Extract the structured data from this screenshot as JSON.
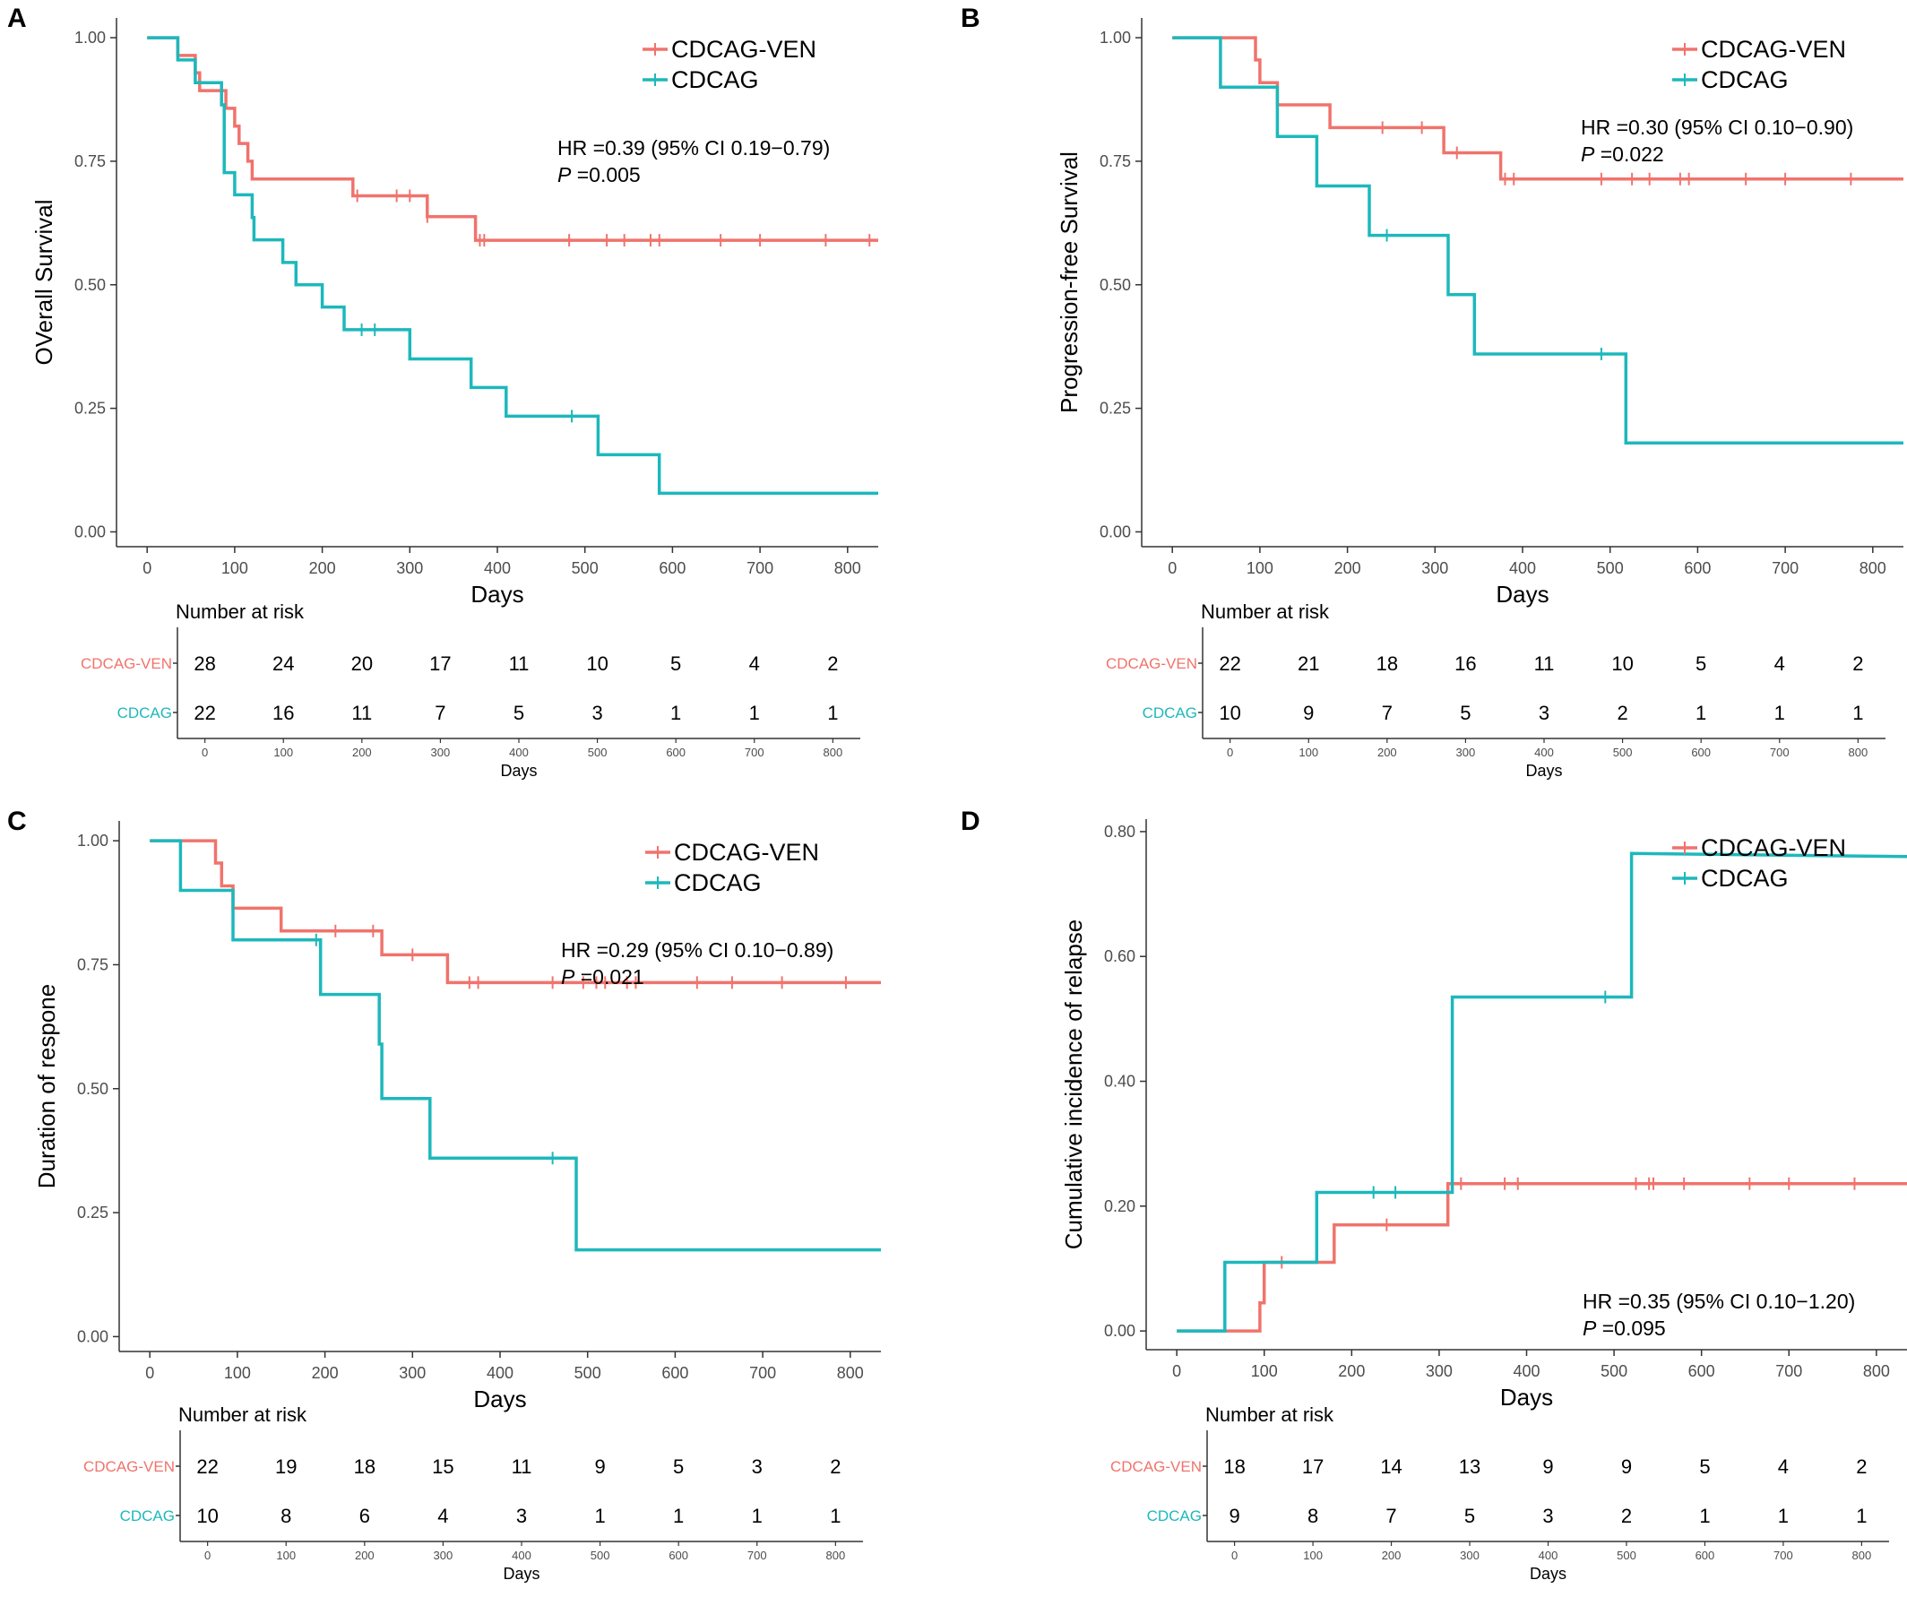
{
  "colors": {
    "ven": "#F0736C",
    "cdcag": "#1DB8BC",
    "axis": "#333333",
    "tick_text": "#4d4d4d"
  },
  "chart_data": [
    {
      "panel_label": "A",
      "type": "line",
      "ylabel": "OVerall Survival",
      "xlabel": "Days",
      "xlim": [
        -35,
        835
      ],
      "ylim": [
        -0.03,
        1.04
      ],
      "xticks": [
        0,
        100,
        200,
        300,
        400,
        500,
        600,
        700,
        800
      ],
      "yticks": [
        "0.00",
        "0.25",
        "0.50",
        "0.75",
        "1.00"
      ],
      "legend": [
        "CDCAG-VEN",
        "CDCAG"
      ],
      "hr_text": "HR =0.39 (95% CI 0.19−0.79)",
      "p_label": "P",
      "p_value": " =0.005",
      "series": [
        {
          "name": "CDCAG-VEN",
          "steps": [
            [
              0,
              1.0
            ],
            [
              35,
              1.0
            ],
            [
              35,
              0.964
            ],
            [
              55,
              0.964
            ],
            [
              55,
              0.929
            ],
            [
              60,
              0.929
            ],
            [
              60,
              0.893
            ],
            [
              90,
              0.893
            ],
            [
              90,
              0.857
            ],
            [
              100,
              0.857
            ],
            [
              100,
              0.821
            ],
            [
              105,
              0.821
            ],
            [
              105,
              0.786
            ],
            [
              115,
              0.786
            ],
            [
              115,
              0.75
            ],
            [
              120,
              0.75
            ],
            [
              120,
              0.714
            ],
            [
              235,
              0.714
            ],
            [
              235,
              0.68
            ],
            [
              320,
              0.68
            ],
            [
              320,
              0.638
            ],
            [
              375,
              0.638
            ],
            [
              375,
              0.59
            ],
            [
              835,
              0.59
            ]
          ],
          "censor_x": [
            240,
            285,
            300,
            320,
            380,
            385,
            482,
            525,
            545,
            575,
            585,
            655,
            700,
            775,
            825
          ],
          "censor_y": [
            0.68,
            0.68,
            0.68,
            0.638,
            0.59,
            0.59,
            0.59,
            0.59,
            0.59,
            0.59,
            0.59,
            0.59,
            0.59,
            0.59,
            0.59
          ]
        },
        {
          "name": "CDCAG",
          "steps": [
            [
              0,
              1.0
            ],
            [
              35,
              1.0
            ],
            [
              35,
              0.955
            ],
            [
              55,
              0.955
            ],
            [
              55,
              0.909
            ],
            [
              85,
              0.909
            ],
            [
              85,
              0.864
            ],
            [
              88,
              0.864
            ],
            [
              88,
              0.727
            ],
            [
              100,
              0.727
            ],
            [
              100,
              0.682
            ],
            [
              120,
              0.682
            ],
            [
              120,
              0.636
            ],
            [
              122,
              0.636
            ],
            [
              122,
              0.591
            ],
            [
              155,
              0.591
            ],
            [
              155,
              0.545
            ],
            [
              170,
              0.545
            ],
            [
              170,
              0.5
            ],
            [
              200,
              0.5
            ],
            [
              200,
              0.455
            ],
            [
              225,
              0.455
            ],
            [
              225,
              0.409
            ],
            [
              300,
              0.409
            ],
            [
              300,
              0.35
            ],
            [
              370,
              0.35
            ],
            [
              370,
              0.292
            ],
            [
              410,
              0.292
            ],
            [
              410,
              0.234
            ],
            [
              515,
              0.234
            ],
            [
              515,
              0.156
            ],
            [
              585,
              0.156
            ],
            [
              585,
              0.078
            ],
            [
              835,
              0.078
            ]
          ],
          "censor_x": [
            245,
            260,
            485
          ],
          "censor_y": [
            0.409,
            0.409,
            0.234
          ]
        }
      ],
      "risk_table": {
        "title": "Number at risk",
        "xlabel": "Days",
        "xticks": [
          0,
          100,
          200,
          300,
          400,
          500,
          600,
          700,
          800
        ],
        "rows": [
          {
            "name": "CDCAG-VEN",
            "values": [
              "28",
              "24",
              "20",
              "17",
              "11",
              "10",
              "5",
              "4",
              "2"
            ]
          },
          {
            "name": "CDCAG",
            "values": [
              "22",
              "16",
              "11",
              "7",
              "5",
              "3",
              "1",
              "1",
              "1"
            ]
          }
        ]
      }
    },
    {
      "panel_label": "B",
      "type": "line",
      "ylabel": "Progression-free Survival",
      "xlabel": "Days",
      "xlim": [
        -35,
        835
      ],
      "ylim": [
        -0.03,
        1.04
      ],
      "xticks": [
        0,
        100,
        200,
        300,
        400,
        500,
        600,
        700,
        800
      ],
      "yticks": [
        "0.00",
        "0.25",
        "0.50",
        "0.75",
        "1.00"
      ],
      "legend": [
        "CDCAG-VEN",
        "CDCAG"
      ],
      "hr_text": "HR =0.30 (95% CI 0.10−0.90)",
      "p_label": "P",
      "p_value": " =0.022",
      "series": [
        {
          "name": "CDCAG-VEN",
          "steps": [
            [
              0,
              1.0
            ],
            [
              95,
              1.0
            ],
            [
              95,
              0.955
            ],
            [
              100,
              0.955
            ],
            [
              100,
              0.909
            ],
            [
              120,
              0.909
            ],
            [
              120,
              0.864
            ],
            [
              180,
              0.864
            ],
            [
              180,
              0.818
            ],
            [
              310,
              0.818
            ],
            [
              310,
              0.767
            ],
            [
              375,
              0.767
            ],
            [
              375,
              0.714
            ],
            [
              835,
              0.714
            ]
          ],
          "censor_x": [
            240,
            285,
            325,
            380,
            390,
            490,
            525,
            545,
            580,
            590,
            655,
            700,
            775
          ],
          "censor_y": [
            0.818,
            0.818,
            0.767,
            0.714,
            0.714,
            0.714,
            0.714,
            0.714,
            0.714,
            0.714,
            0.714,
            0.714,
            0.714
          ]
        },
        {
          "name": "CDCAG",
          "steps": [
            [
              0,
              1.0
            ],
            [
              55,
              1.0
            ],
            [
              55,
              0.9
            ],
            [
              120,
              0.9
            ],
            [
              120,
              0.8
            ],
            [
              165,
              0.8
            ],
            [
              165,
              0.7
            ],
            [
              225,
              0.7
            ],
            [
              225,
              0.6
            ],
            [
              315,
              0.6
            ],
            [
              315,
              0.48
            ],
            [
              345,
              0.48
            ],
            [
              345,
              0.36
            ],
            [
              518,
              0.36
            ],
            [
              518,
              0.18
            ],
            [
              835,
              0.18
            ]
          ],
          "censor_x": [
            245,
            490
          ],
          "censor_y": [
            0.6,
            0.36
          ]
        }
      ],
      "risk_table": {
        "title": "Number at risk",
        "xlabel": "Days",
        "xticks": [
          0,
          100,
          200,
          300,
          400,
          500,
          600,
          700,
          800
        ],
        "rows": [
          {
            "name": "CDCAG-VEN",
            "values": [
              "22",
              "21",
              "18",
              "16",
              "11",
              "10",
              "5",
              "4",
              "2"
            ]
          },
          {
            "name": "CDCAG",
            "values": [
              "10",
              "9",
              "7",
              "5",
              "3",
              "2",
              "1",
              "1",
              "1"
            ]
          }
        ]
      }
    },
    {
      "panel_label": "C",
      "type": "line",
      "ylabel": "Duration of respone",
      "xlabel": "Days",
      "xlim": [
        -35,
        835
      ],
      "ylim": [
        -0.03,
        1.04
      ],
      "xticks": [
        0,
        100,
        200,
        300,
        400,
        500,
        600,
        700,
        800
      ],
      "yticks": [
        "0.00",
        "0.25",
        "0.50",
        "0.75",
        "1.00"
      ],
      "legend": [
        "CDCAG-VEN",
        "CDCAG"
      ],
      "hr_text": "HR =0.29 (95% CI 0.10−0.89)",
      "p_label": "P",
      "p_value": " =0.021",
      "series": [
        {
          "name": "CDCAG-VEN",
          "steps": [
            [
              0,
              1.0
            ],
            [
              75,
              1.0
            ],
            [
              75,
              0.955
            ],
            [
              82,
              0.955
            ],
            [
              82,
              0.909
            ],
            [
              95,
              0.909
            ],
            [
              95,
              0.864
            ],
            [
              150,
              0.864
            ],
            [
              150,
              0.818
            ],
            [
              265,
              0.818
            ],
            [
              265,
              0.77
            ],
            [
              340,
              0.77
            ],
            [
              340,
              0.714
            ],
            [
              835,
              0.714
            ]
          ],
          "censor_x": [
            212,
            255,
            300,
            365,
            375,
            460,
            495,
            510,
            520,
            545,
            555,
            625,
            665,
            722,
            795
          ],
          "censor_y": [
            0.818,
            0.818,
            0.77,
            0.714,
            0.714,
            0.714,
            0.714,
            0.714,
            0.714,
            0.714,
            0.714,
            0.714,
            0.714,
            0.714,
            0.714
          ]
        },
        {
          "name": "CDCAG",
          "steps": [
            [
              0,
              1.0
            ],
            [
              35,
              1.0
            ],
            [
              35,
              0.9
            ],
            [
              95,
              0.9
            ],
            [
              95,
              0.8
            ],
            [
              195,
              0.8
            ],
            [
              195,
              0.69
            ],
            [
              262,
              0.69
            ],
            [
              262,
              0.59
            ],
            [
              265,
              0.59
            ],
            [
              265,
              0.48
            ],
            [
              320,
              0.48
            ],
            [
              320,
              0.36
            ],
            [
              487,
              0.36
            ],
            [
              487,
              0.175
            ],
            [
              835,
              0.175
            ]
          ],
          "censor_x": [
            190,
            460
          ],
          "censor_y": [
            0.8,
            0.36
          ]
        }
      ],
      "risk_table": {
        "title": "Number at risk",
        "xlabel": "Days",
        "xticks": [
          0,
          100,
          200,
          300,
          400,
          500,
          600,
          700,
          800
        ],
        "rows": [
          {
            "name": "CDCAG-VEN",
            "values": [
              "22",
              "19",
              "18",
              "15",
              "11",
              "9",
              "5",
              "3",
              "2"
            ]
          },
          {
            "name": "CDCAG",
            "values": [
              "10",
              "8",
              "6",
              "4",
              "3",
              "1",
              "1",
              "1",
              "1"
            ]
          }
        ]
      }
    },
    {
      "panel_label": "D",
      "type": "line",
      "ylabel": "Cumulative incidence of relapse",
      "xlabel": "Days",
      "xlim": [
        -35,
        835
      ],
      "ylim": [
        -0.03,
        0.82
      ],
      "xticks": [
        0,
        100,
        200,
        300,
        400,
        500,
        600,
        700,
        800
      ],
      "yticks": [
        "0.00",
        "0.20",
        "0.40",
        "0.60",
        "0.80"
      ],
      "legend": [
        "CDCAG-VEN",
        "CDCAG"
      ],
      "hr_text": "HR =0.35 (95% CI 0.10−1.20)",
      "p_label": "P",
      "p_value": " =0.095",
      "series": [
        {
          "name": "CDCAG-VEN",
          "steps": [
            [
              0,
              0.0
            ],
            [
              95,
              0.0
            ],
            [
              95,
              0.045
            ],
            [
              100,
              0.045
            ],
            [
              100,
              0.11
            ],
            [
              180,
              0.11
            ],
            [
              180,
              0.17
            ],
            [
              310,
              0.17
            ],
            [
              310,
              0.236
            ],
            [
              835,
              0.236
            ]
          ],
          "censor_x": [
            120,
            240,
            325,
            375,
            390,
            525,
            540,
            545,
            580,
            655,
            700,
            775
          ],
          "censor_y": [
            0.11,
            0.17,
            0.236,
            0.236,
            0.236,
            0.236,
            0.236,
            0.236,
            0.236,
            0.236,
            0.236,
            0.236
          ]
        },
        {
          "name": "CDCAG",
          "steps": [
            [
              0,
              0.0
            ],
            [
              55,
              0.0
            ],
            [
              55,
              0.11
            ],
            [
              160,
              0.11
            ],
            [
              160,
              0.222
            ],
            [
              315,
              0.222
            ],
            [
              315,
              0.535
            ],
            [
              520,
              0.535
            ],
            [
              520,
              0.765
            ],
            [
              835,
              0.76
            ]
          ],
          "censor_x": [
            225,
            250,
            490
          ],
          "censor_y": [
            0.222,
            0.222,
            0.535
          ]
        }
      ],
      "risk_table": {
        "title": "Number at risk",
        "xlabel": "Days",
        "xticks": [
          0,
          100,
          200,
          300,
          400,
          500,
          600,
          700,
          800
        ],
        "rows": [
          {
            "name": "CDCAG-VEN",
            "values": [
              "18",
              "17",
              "14",
              "13",
              "9",
              "9",
              "5",
              "4",
              "2"
            ]
          },
          {
            "name": "CDCAG",
            "values": [
              "9",
              "8",
              "7",
              "5",
              "3",
              "2",
              "1",
              "1",
              "1"
            ]
          }
        ]
      }
    }
  ]
}
